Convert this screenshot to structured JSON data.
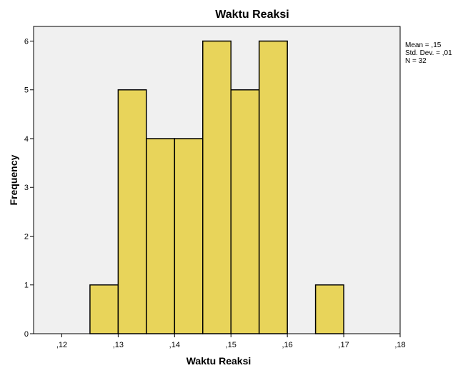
{
  "chart_data": {
    "type": "bar",
    "title": "Waktu Reaksi",
    "xlabel": "Waktu Reaksi",
    "ylabel": "Frequency",
    "xlim": [
      0.115,
      0.18
    ],
    "ylim": [
      0,
      6.3
    ],
    "x_ticks": [
      {
        "value": 0.12,
        "label": ",12"
      },
      {
        "value": 0.13,
        "label": ",13"
      },
      {
        "value": 0.14,
        "label": ",14"
      },
      {
        "value": 0.15,
        "label": ",15"
      },
      {
        "value": 0.16,
        "label": ",16"
      },
      {
        "value": 0.17,
        "label": ",17"
      },
      {
        "value": 0.18,
        "label": ",18"
      }
    ],
    "y_ticks": [
      0,
      1,
      2,
      3,
      4,
      5,
      6
    ],
    "bins": [
      {
        "start": 0.125,
        "end": 0.13,
        "count": 1
      },
      {
        "start": 0.13,
        "end": 0.135,
        "count": 5
      },
      {
        "start": 0.135,
        "end": 0.14,
        "count": 4
      },
      {
        "start": 0.14,
        "end": 0.145,
        "count": 4
      },
      {
        "start": 0.145,
        "end": 0.15,
        "count": 6
      },
      {
        "start": 0.15,
        "end": 0.155,
        "count": 5
      },
      {
        "start": 0.155,
        "end": 0.16,
        "count": 6
      },
      {
        "start": 0.165,
        "end": 0.17,
        "count": 1
      }
    ],
    "stats": [
      "Mean = ,15",
      "Std. Dev. = ,01",
      "N = 32"
    ],
    "grid": false,
    "colors": {
      "bar_fill": "#E8D45A",
      "bar_stroke": "#000000",
      "plot_background": "#F0F0F0"
    }
  }
}
